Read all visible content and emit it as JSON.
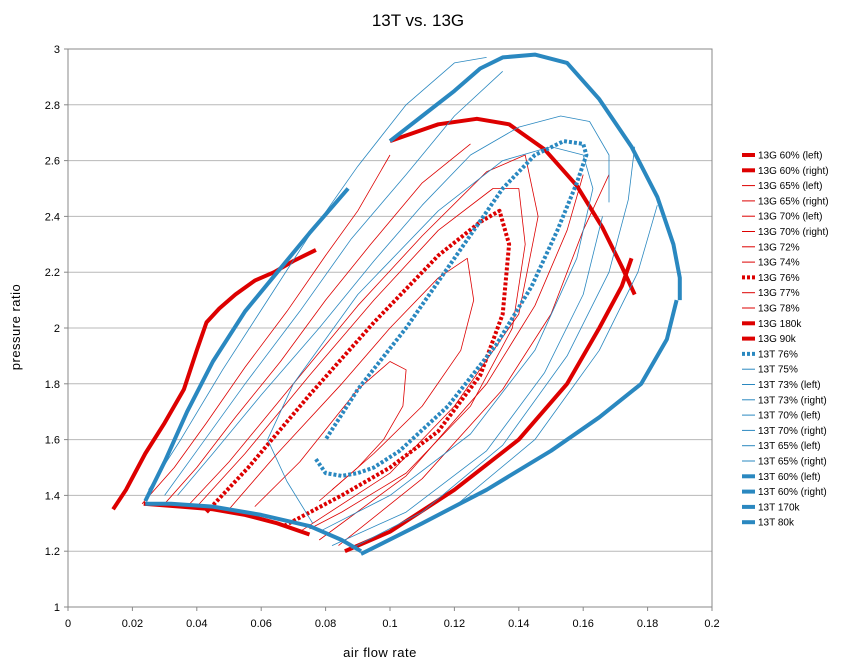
{
  "chart_data": {
    "type": "line",
    "title": "13T vs. 13G",
    "xlabel": "air flow rate",
    "ylabel": "pressure ratio",
    "xlim": [
      0,
      0.2
    ],
    "ylim": [
      1,
      3
    ],
    "xticks": [
      "0",
      "0.02",
      "0.04",
      "0.06",
      "0.08",
      "0.1",
      "0.12",
      "0.14",
      "0.16",
      "0.18",
      "0.2"
    ],
    "yticks": [
      "1",
      "1.2",
      "1.4",
      "1.6",
      "1.8",
      "2",
      "2.2",
      "2.4",
      "2.6",
      "2.8",
      "3"
    ],
    "grid": "horizontal",
    "legend_position": "right",
    "colors": {
      "13G": "#dd0000",
      "13T": "#2a88c0"
    },
    "series": [
      {
        "name": "13G 60% (left)",
        "family": "13G",
        "style": "thick",
        "x": [
          0.0235,
          0.035,
          0.045,
          0.055,
          0.065,
          0.075
        ],
        "y": [
          1.37,
          1.36,
          1.35,
          1.33,
          1.3,
          1.26
        ]
      },
      {
        "name": "13G 60% (right)",
        "family": "13G",
        "style": "thick",
        "x": [
          0.086,
          0.1,
          0.12,
          0.14,
          0.155,
          0.165,
          0.172,
          0.175
        ],
        "y": [
          1.2,
          1.27,
          1.42,
          1.6,
          1.8,
          2.0,
          2.15,
          2.25
        ]
      },
      {
        "name": "13G 65% (left)",
        "family": "13G",
        "style": "thin",
        "x": [
          0.023,
          0.033,
          0.043,
          0.055,
          0.068,
          0.08,
          0.09,
          0.1
        ],
        "y": [
          1.37,
          1.5,
          1.66,
          1.86,
          2.06,
          2.26,
          2.42,
          2.62
        ]
      },
      {
        "name": "13G 65% (right)",
        "family": "13G",
        "style": "thin",
        "x": [
          0.084,
          0.11,
          0.135,
          0.15,
          0.16,
          0.168
        ],
        "y": [
          1.22,
          1.46,
          1.78,
          2.05,
          2.35,
          2.55
        ]
      },
      {
        "name": "13G 70% (left)",
        "family": "13G",
        "style": "thin",
        "x": [
          0.03,
          0.04,
          0.052,
          0.066,
          0.08,
          0.094,
          0.11,
          0.125
        ],
        "y": [
          1.37,
          1.5,
          1.68,
          1.88,
          2.1,
          2.3,
          2.52,
          2.66
        ]
      },
      {
        "name": "13G 70% (right)",
        "family": "13G",
        "style": "thin",
        "x": [
          0.078,
          0.105,
          0.13,
          0.145,
          0.155,
          0.16
        ],
        "y": [
          1.24,
          1.47,
          1.8,
          2.08,
          2.35,
          2.55
        ]
      },
      {
        "name": "13G 72%",
        "family": "13G",
        "style": "thin",
        "x": [
          0.037,
          0.05,
          0.07,
          0.09,
          0.11,
          0.13,
          0.142,
          0.146,
          0.14,
          0.12,
          0.1,
          0.08,
          0.072
        ],
        "y": [
          1.36,
          1.52,
          1.8,
          2.08,
          2.33,
          2.56,
          2.62,
          2.4,
          2.05,
          1.72,
          1.48,
          1.33,
          1.27
        ]
      },
      {
        "name": "13G 74%",
        "family": "13G",
        "style": "thin",
        "x": [
          0.04,
          0.055,
          0.075,
          0.095,
          0.115,
          0.132,
          0.14,
          0.142,
          0.138,
          0.125,
          0.105,
          0.085,
          0.075
        ],
        "y": [
          1.36,
          1.55,
          1.83,
          2.1,
          2.35,
          2.5,
          2.5,
          2.3,
          2.0,
          1.72,
          1.48,
          1.34,
          1.28
        ]
      },
      {
        "name": "13G 76%",
        "family": "13G",
        "style": "dotted",
        "x": [
          0.043,
          0.056,
          0.075,
          0.095,
          0.115,
          0.128,
          0.134,
          0.137,
          0.135,
          0.128,
          0.115,
          0.1,
          0.085,
          0.067
        ],
        "y": [
          1.34,
          1.5,
          1.76,
          2.02,
          2.26,
          2.38,
          2.42,
          2.3,
          2.05,
          1.83,
          1.63,
          1.5,
          1.4,
          1.29
        ]
      },
      {
        "name": "13G 77%",
        "family": "13G",
        "style": "thin",
        "x": [
          0.05,
          0.065,
          0.085,
          0.1,
          0.115,
          0.124,
          0.126,
          0.122,
          0.11,
          0.095,
          0.078
        ],
        "y": [
          1.35,
          1.55,
          1.8,
          2.0,
          2.18,
          2.25,
          2.1,
          1.92,
          1.72,
          1.55,
          1.38
        ]
      },
      {
        "name": "13G 78%",
        "family": "13G",
        "style": "thin",
        "x": [
          0.058,
          0.072,
          0.09,
          0.1,
          0.105,
          0.104,
          0.098,
          0.09,
          0.082
        ],
        "y": [
          1.36,
          1.52,
          1.78,
          1.88,
          1.85,
          1.72,
          1.6,
          1.5,
          1.42
        ]
      },
      {
        "name": "13G 180k",
        "family": "13G",
        "style": "thick",
        "x": [
          0.1,
          0.105,
          0.115,
          0.127,
          0.137,
          0.148,
          0.158,
          0.166,
          0.172,
          0.176
        ],
        "y": [
          2.67,
          2.69,
          2.73,
          2.75,
          2.73,
          2.64,
          2.51,
          2.36,
          2.22,
          2.12
        ]
      },
      {
        "name": "13G 90k",
        "family": "13G",
        "style": "thick",
        "x": [
          0.014,
          0.018,
          0.024,
          0.03,
          0.036,
          0.04,
          0.043,
          0.047,
          0.052,
          0.058,
          0.064,
          0.07,
          0.077
        ],
        "y": [
          1.35,
          1.42,
          1.55,
          1.66,
          1.78,
          1.92,
          2.02,
          2.07,
          2.12,
          2.17,
          2.2,
          2.24,
          2.28
        ]
      },
      {
        "name": "13T 76%",
        "family": "13T",
        "style": "dotted",
        "x": [
          0.077,
          0.08,
          0.085,
          0.09,
          0.095,
          0.103,
          0.118,
          0.133,
          0.144,
          0.152,
          0.158,
          0.161,
          0.16,
          0.154,
          0.145,
          0.135,
          0.12,
          0.105,
          0.09,
          0.08
        ],
        "y": [
          1.53,
          1.48,
          1.47,
          1.48,
          1.5,
          1.56,
          1.72,
          1.94,
          2.15,
          2.35,
          2.52,
          2.62,
          2.66,
          2.67,
          2.62,
          2.5,
          2.25,
          2.0,
          1.78,
          1.6
        ]
      },
      {
        "name": "13T 75%",
        "family": "13T",
        "style": "thin",
        "x": [
          0.078,
          0.1,
          0.125,
          0.145,
          0.158,
          0.163,
          0.16,
          0.15,
          0.135,
          0.115,
          0.09,
          0.07,
          0.062,
          0.068,
          0.076
        ],
        "y": [
          1.27,
          1.4,
          1.62,
          1.92,
          2.25,
          2.5,
          2.62,
          2.65,
          2.6,
          2.42,
          2.12,
          1.8,
          1.6,
          1.45,
          1.3
        ]
      },
      {
        "name": "13T 73% (left)",
        "family": "13T",
        "style": "thin",
        "x": [
          0.034,
          0.045,
          0.06,
          0.078,
          0.095,
          0.11,
          0.125,
          0.14,
          0.153,
          0.162,
          0.168,
          0.168
        ],
        "y": [
          1.4,
          1.55,
          1.76,
          2.0,
          2.24,
          2.44,
          2.62,
          2.72,
          2.76,
          2.74,
          2.62,
          2.45
        ]
      },
      {
        "name": "13T 73% (right)",
        "family": "13T",
        "style": "thin",
        "x": [
          0.082,
          0.105,
          0.13,
          0.148,
          0.16,
          0.166
        ],
        "y": [
          1.22,
          1.34,
          1.56,
          1.84,
          2.12,
          2.4
        ]
      },
      {
        "name": "13T 70% (left)",
        "family": "13T",
        "style": "thin",
        "x": [
          0.03,
          0.04,
          0.055,
          0.072,
          0.088,
          0.105,
          0.12,
          0.135
        ],
        "y": [
          1.4,
          1.56,
          1.8,
          2.06,
          2.32,
          2.55,
          2.76,
          2.92
        ]
      },
      {
        "name": "13T 70% (right)",
        "family": "13T",
        "style": "thin",
        "x": [
          0.088,
          0.11,
          0.135,
          0.155,
          0.168,
          0.174,
          0.176
        ],
        "y": [
          1.21,
          1.34,
          1.58,
          1.9,
          2.2,
          2.46,
          2.65
        ]
      },
      {
        "name": "13T 65% (left)",
        "family": "13T",
        "style": "thin",
        "x": [
          0.025,
          0.035,
          0.048,
          0.062,
          0.076,
          0.09,
          0.105,
          0.12,
          0.13
        ],
        "y": [
          1.42,
          1.6,
          1.85,
          2.1,
          2.35,
          2.58,
          2.8,
          2.95,
          2.97
        ]
      },
      {
        "name": "13T 65% (right)",
        "family": "13T",
        "style": "thin",
        "x": [
          0.092,
          0.12,
          0.145,
          0.165,
          0.177,
          0.183
        ],
        "y": [
          1.2,
          1.36,
          1.6,
          1.92,
          2.2,
          2.44
        ]
      },
      {
        "name": "13T 60% (left)",
        "family": "13T",
        "style": "thick",
        "x": [
          0.024,
          0.032,
          0.045,
          0.06,
          0.075,
          0.085,
          0.091
        ],
        "y": [
          1.37,
          1.37,
          1.36,
          1.33,
          1.29,
          1.24,
          1.2
        ]
      },
      {
        "name": "13T 60% (right)",
        "family": "13T",
        "style": "thick",
        "x": [
          0.091,
          0.11,
          0.13,
          0.15,
          0.165,
          0.178,
          0.186,
          0.189
        ],
        "y": [
          1.19,
          1.3,
          1.42,
          1.56,
          1.68,
          1.8,
          1.96,
          2.1
        ]
      },
      {
        "name": "13T 170k",
        "family": "13T",
        "style": "thick",
        "x": [
          0.1,
          0.11,
          0.12,
          0.128,
          0.135,
          0.145,
          0.155,
          0.165,
          0.175,
          0.183,
          0.188,
          0.19,
          0.19
        ],
        "y": [
          2.67,
          2.76,
          2.85,
          2.93,
          2.97,
          2.98,
          2.95,
          2.82,
          2.65,
          2.47,
          2.3,
          2.18,
          2.1
        ]
      },
      {
        "name": "13T 80k",
        "family": "13T",
        "style": "thick",
        "x": [
          0.024,
          0.03,
          0.037,
          0.045,
          0.055,
          0.065,
          0.075,
          0.087
        ],
        "y": [
          1.38,
          1.52,
          1.7,
          1.88,
          2.06,
          2.2,
          2.34,
          2.5
        ]
      }
    ]
  }
}
